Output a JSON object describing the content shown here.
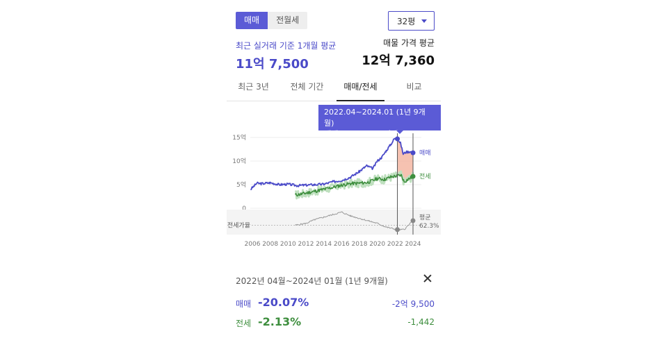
{
  "trade_toggle": {
    "options": [
      "매매",
      "전월세"
    ],
    "active": "매매"
  },
  "size_select": {
    "value": "32평"
  },
  "recent": {
    "label": "최근 실거래 기준 1개월 평균",
    "value": "11억 7,500"
  },
  "listing": {
    "label": "매물 가격 평균",
    "value": "12억 7,360"
  },
  "tabs": [
    "최근 3년",
    "전체 기간",
    "매매/전세",
    "비교"
  ],
  "tooltip": {
    "period": "2022.04~2024.01 (1년 9개월)",
    "change": "매매 -20.07%  /  전세 -2.13%"
  },
  "colors": {
    "sale": "#4a4ac8",
    "jeonse": "#3e8e3e",
    "ratio": "#999999",
    "drop_fill": "#f5b7a3",
    "accent": "#5b5bd6"
  },
  "chart_data": {
    "type": "line",
    "x_tick_labels": [
      "2006",
      "2008",
      "2010",
      "2012",
      "2014",
      "2016",
      "2018",
      "2020",
      "2022",
      "2024"
    ],
    "y_tick_labels": [
      "15억",
      "10억",
      "5억",
      "0"
    ],
    "ratio_axis_label": "전세가율",
    "ylim": [
      0,
      15
    ],
    "xlim": [
      2006,
      2024.5
    ],
    "series": [
      {
        "name": "매매",
        "x": [
          2005.8,
          2006.5,
          2007,
          2008,
          2009,
          2010,
          2011,
          2012,
          2013,
          2014,
          2015,
          2016,
          2017,
          2018,
          2018.8,
          2019.5,
          2020,
          2020.5,
          2021,
          2021.5,
          2021.9,
          2022.25,
          2022.6,
          2022.9,
          2023.2,
          2023.6,
          2024.0
        ],
        "values": [
          4.0,
          5.3,
          5.2,
          5.4,
          5.0,
          5.1,
          4.8,
          4.9,
          5.0,
          5.1,
          5.6,
          5.9,
          6.6,
          7.8,
          9.0,
          8.4,
          10.0,
          10.8,
          12.2,
          13.5,
          14.7,
          14.7,
          13.8,
          11.5,
          11.9,
          12.0,
          11.75
        ]
      },
      {
        "name": "전세",
        "x": [
          2010.8,
          2011.5,
          2012,
          2013,
          2014,
          2015,
          2016,
          2017,
          2018,
          2019,
          2020,
          2020.8,
          2021.5,
          2022.25,
          2022.7,
          2023,
          2023.5,
          2024.0
        ],
        "values": [
          2.8,
          3.0,
          3.2,
          3.6,
          4.0,
          4.4,
          4.9,
          5.2,
          5.3,
          5.5,
          6.3,
          6.1,
          6.6,
          6.9,
          7.0,
          5.6,
          6.2,
          6.75
        ]
      },
      {
        "name": "전세가율",
        "x": [
          2010.8,
          2012,
          2013,
          2014,
          2015,
          2016,
          2017,
          2018,
          2019,
          2020,
          2021,
          2022.25,
          2023,
          2023.5,
          2024.0
        ],
        "values": [
          55,
          58,
          64,
          68,
          72,
          76,
          70,
          66,
          62,
          58,
          52,
          48,
          48,
          55,
          62.3
        ]
      }
    ],
    "end_labels": {
      "sale": "매매",
      "jeonse": "전세",
      "ratio": "평균",
      "ratio_value": "62.3%"
    },
    "selected_range": [
      2022.25,
      2024.0
    ]
  },
  "range_detail": {
    "title": "2022년 04월~2024년 01월 (1년 9개월)",
    "sale": {
      "label": "매매",
      "pct": "-20.07%",
      "amount": "-2억 9,500"
    },
    "jeonse": {
      "label": "전세",
      "pct": "-2.13%",
      "amount": "-1,442"
    }
  }
}
